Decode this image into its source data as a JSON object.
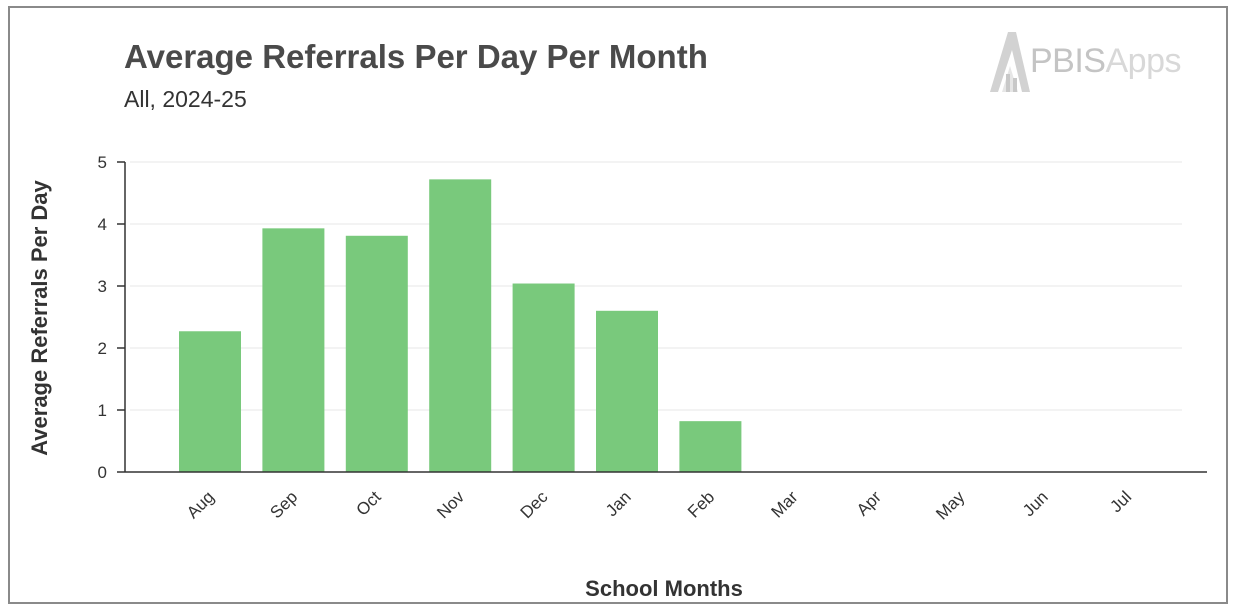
{
  "chart_data": {
    "type": "bar",
    "title": "Average Referrals Per Day Per Month",
    "subtitle": "All, 2024-25",
    "xlabel": "School Months",
    "ylabel": "Average Referrals Per Day",
    "categories": [
      "Aug",
      "Sep",
      "Oct",
      "Nov",
      "Dec",
      "Jan",
      "Feb",
      "Mar",
      "Apr",
      "May",
      "Jun",
      "Jul"
    ],
    "values": [
      2.27,
      3.93,
      3.81,
      4.72,
      3.04,
      2.6,
      0.82,
      0,
      0,
      0,
      0,
      0
    ],
    "ylim": [
      0,
      5
    ],
    "yticks": [
      0,
      1,
      2,
      3,
      4,
      5
    ],
    "grid": true,
    "bar_color": "#79c97c",
    "legend": "none"
  },
  "logo": {
    "brand_strong": "PBIS",
    "brand_light": "Apps"
  }
}
